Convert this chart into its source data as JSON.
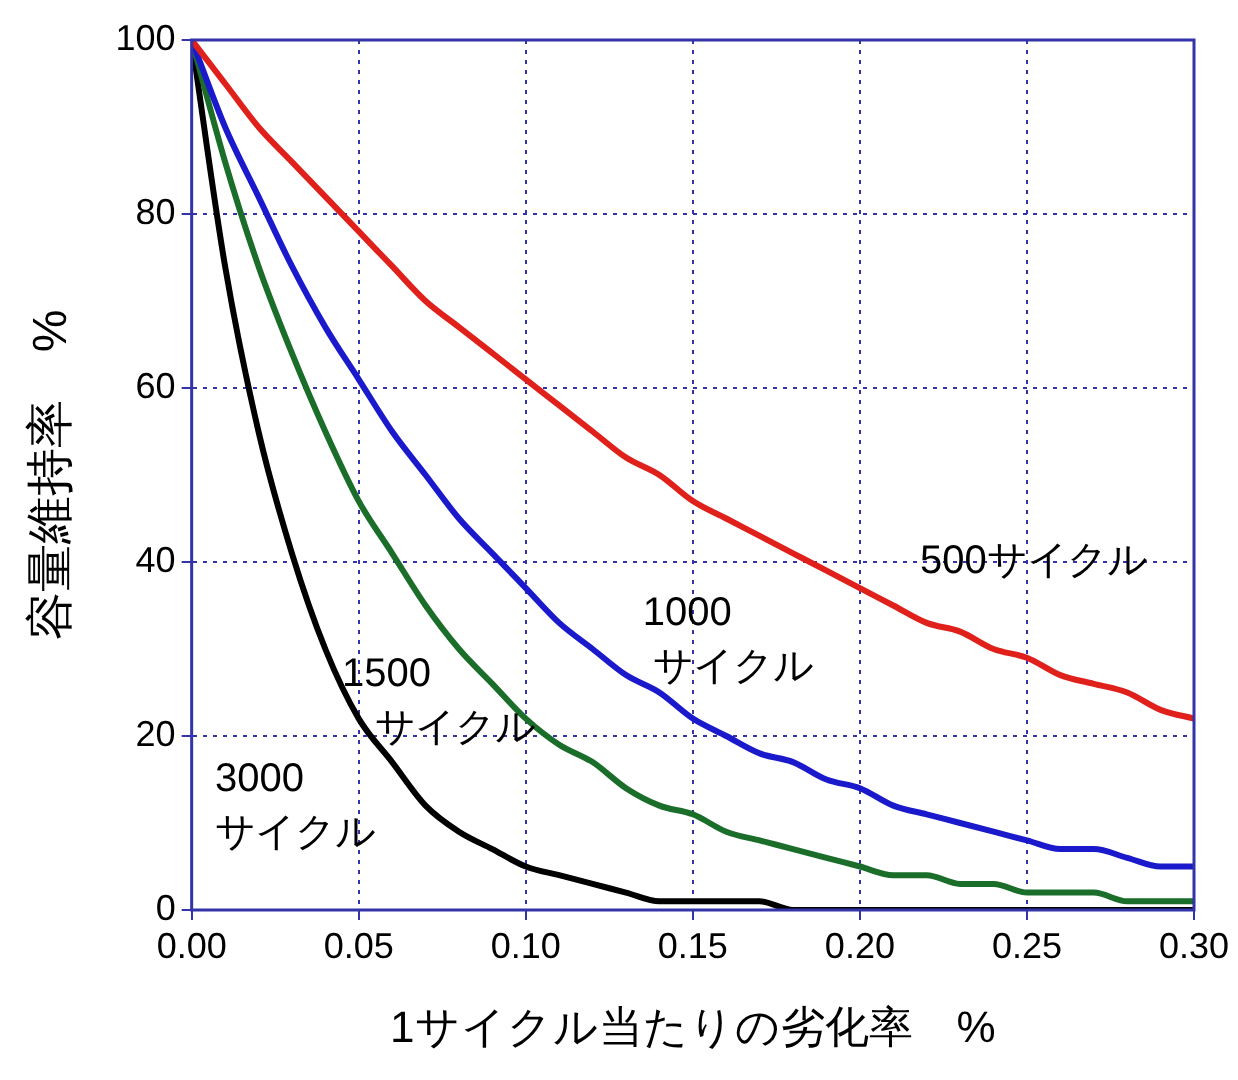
{
  "chart_data": {
    "type": "line",
    "xlabel": "1サイクル当たりの劣化率　%",
    "ylabel": "容量維持率　%",
    "x": [
      0,
      0.01,
      0.02,
      0.03,
      0.04,
      0.05,
      0.06,
      0.07,
      0.08,
      0.09,
      0.1,
      0.11,
      0.12,
      0.13,
      0.14,
      0.15,
      0.16,
      0.17,
      0.18,
      0.19,
      0.2,
      0.21,
      0.22,
      0.23,
      0.24,
      0.25,
      0.26,
      0.27,
      0.28,
      0.29,
      0.3
    ],
    "series": [
      {
        "name": "500サイクル",
        "color": "#e0201b",
        "values": [
          100,
          95,
          90,
          86,
          82,
          78,
          74,
          70,
          67,
          64,
          61,
          58,
          55,
          52,
          50,
          47,
          45,
          43,
          41,
          39,
          37,
          35,
          33,
          32,
          30,
          29,
          27,
          26,
          25,
          23,
          22
        ]
      },
      {
        "name": "1000サイクル",
        "color": "#1a1acc",
        "values": [
          100,
          90,
          82,
          74,
          67,
          61,
          55,
          50,
          45,
          41,
          37,
          33,
          30,
          27,
          25,
          22,
          20,
          18,
          17,
          15,
          14,
          12,
          11,
          10,
          9,
          8,
          7,
          7,
          6,
          5,
          5
        ]
      },
      {
        "name": "1500サイクル",
        "color": "#1a6e2a",
        "values": [
          100,
          86,
          74,
          64,
          55,
          47,
          41,
          35,
          30,
          26,
          22,
          19,
          17,
          14,
          12,
          11,
          9,
          8,
          7,
          6,
          5,
          4,
          4,
          3,
          3,
          2,
          2,
          2,
          1,
          1,
          1
        ]
      },
      {
        "name": "3000サイクル",
        "color": "#000000",
        "values": [
          100,
          74,
          55,
          41,
          30,
          22,
          17,
          12,
          9,
          7,
          5,
          4,
          3,
          2,
          1,
          1,
          1,
          1,
          0,
          0,
          0,
          0,
          0,
          0,
          0,
          0,
          0,
          0,
          0,
          0,
          0
        ]
      }
    ],
    "xlim": [
      0,
      0.3
    ],
    "xticks": [
      {
        "value": 0,
        "label": "0.00"
      },
      {
        "value": 0.05,
        "label": "0.05"
      },
      {
        "value": 0.1,
        "label": "0.10"
      },
      {
        "value": 0.15,
        "label": "0.15"
      },
      {
        "value": 0.2,
        "label": "0.20"
      },
      {
        "value": 0.25,
        "label": "0.25"
      },
      {
        "value": 0.3,
        "label": "0.30"
      }
    ],
    "ylim": [
      0,
      100
    ],
    "yticks": [
      0,
      20,
      40,
      60,
      80,
      100
    ],
    "grid": true,
    "legend": false,
    "marker": "none",
    "line_style": "solid"
  }
}
